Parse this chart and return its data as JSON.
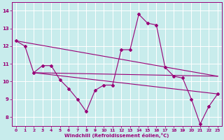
{
  "xlabel": "Windchill (Refroidissement éolien,°C)",
  "background_color": "#c8ecec",
  "line_color": "#990077",
  "grid_color": "#ffffff",
  "xlim": [
    -0.5,
    23.5
  ],
  "ylim": [
    7.5,
    14.5
  ],
  "xticks": [
    0,
    1,
    2,
    3,
    4,
    5,
    6,
    7,
    8,
    9,
    10,
    11,
    12,
    13,
    14,
    15,
    16,
    17,
    18,
    19,
    20,
    21,
    22,
    23
  ],
  "yticks": [
    8,
    9,
    10,
    11,
    12,
    13,
    14
  ],
  "series": [
    {
      "x": [
        0,
        1,
        2,
        3,
        4,
        5,
        6,
        7,
        8,
        9,
        10,
        11,
        12,
        13,
        14,
        15,
        16,
        17,
        18,
        19,
        20,
        21,
        22,
        23
      ],
      "y": [
        12.3,
        12.0,
        10.5,
        10.9,
        10.9,
        10.1,
        9.6,
        9.0,
        8.3,
        9.5,
        9.8,
        9.8,
        11.8,
        11.8,
        13.8,
        13.3,
        13.2,
        10.8,
        10.3,
        10.2,
        9.0,
        7.6,
        8.6,
        9.3
      ]
    },
    {
      "x": [
        0,
        23
      ],
      "y": [
        12.3,
        10.3
      ]
    },
    {
      "x": [
        2,
        23
      ],
      "y": [
        10.5,
        10.3
      ]
    },
    {
      "x": [
        2,
        23
      ],
      "y": [
        10.5,
        9.3
      ]
    }
  ]
}
